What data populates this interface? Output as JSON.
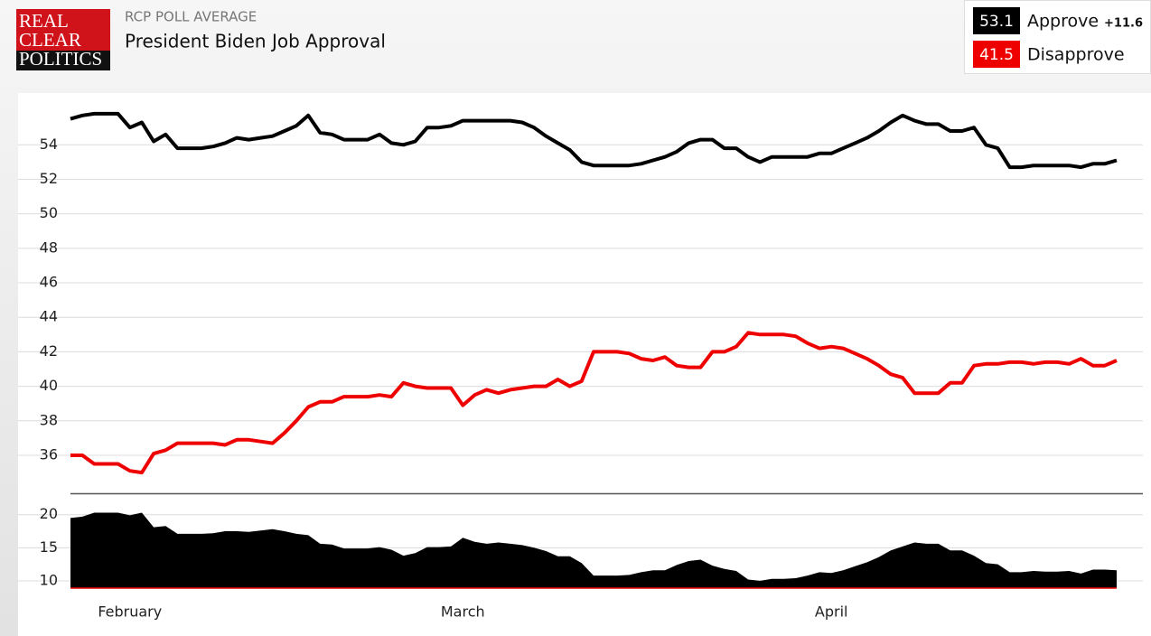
{
  "header": {
    "source": "RCP POLL AVERAGE",
    "logo": [
      "REAL",
      "CLEAR",
      "POLITICS"
    ],
    "spread": "+11.6"
  },
  "chart_data": [
    {
      "type": "line",
      "title": "President Biden Job Approval",
      "x": [
        0,
        1,
        2,
        3,
        4,
        5,
        6,
        7,
        8,
        9,
        10,
        11,
        12,
        13,
        14,
        15,
        16,
        17,
        18,
        19,
        20,
        21,
        22,
        23,
        24,
        25,
        26,
        27,
        28,
        29,
        30,
        31,
        32,
        33,
        34,
        35,
        36,
        37,
        38,
        39,
        40,
        41,
        42,
        43,
        44,
        45,
        46,
        47,
        48,
        49,
        50,
        51,
        52,
        53,
        54,
        55,
        56,
        57,
        58,
        59,
        60,
        61,
        62,
        63,
        64,
        65,
        66,
        67,
        68,
        69,
        70,
        71,
        72,
        73,
        74,
        75,
        76,
        77,
        78,
        79,
        80,
        81,
        82,
        83,
        84,
        85,
        86,
        87,
        88
      ],
      "xlim": [
        0,
        88
      ],
      "ylim": [
        33.8,
        57
      ],
      "yticks": [
        36,
        38,
        40,
        42,
        44,
        46,
        48,
        50,
        52,
        54
      ],
      "grid": true,
      "series": [
        {
          "name": "Approve",
          "color": "#000000",
          "values": [
            55.5,
            55.7,
            55.8,
            55.8,
            55.8,
            55.0,
            55.3,
            54.2,
            54.6,
            53.8,
            53.8,
            53.8,
            53.9,
            54.1,
            54.4,
            54.3,
            54.4,
            54.5,
            54.8,
            55.1,
            55.7,
            54.7,
            54.6,
            54.3,
            54.3,
            54.3,
            54.6,
            54.1,
            54.0,
            54.2,
            55.0,
            55.0,
            55.1,
            55.4,
            55.4,
            55.4,
            55.4,
            55.4,
            55.3,
            55.0,
            54.5,
            54.1,
            53.7,
            53.0,
            52.8,
            52.8,
            52.8,
            52.8,
            52.9,
            53.1,
            53.3,
            53.6,
            54.1,
            54.3,
            54.3,
            53.8,
            53.8,
            53.3,
            53.0,
            53.3,
            53.3,
            53.3,
            53.3,
            53.5,
            53.5,
            53.8,
            54.1,
            54.4,
            54.8,
            55.3,
            55.7,
            55.4,
            55.2,
            55.2,
            54.8,
            54.8,
            55.0,
            54.0,
            53.8,
            52.7,
            52.7,
            52.8,
            52.8,
            52.8,
            52.8,
            52.7,
            52.9,
            52.9,
            53.1
          ]
        },
        {
          "name": "Disapprove",
          "color": "#ee0000",
          "values": [
            36.0,
            36.0,
            35.5,
            35.5,
            35.5,
            35.1,
            35.0,
            36.1,
            36.3,
            36.7,
            36.7,
            36.7,
            36.7,
            36.6,
            36.9,
            36.9,
            36.8,
            36.7,
            37.3,
            38.0,
            38.8,
            39.1,
            39.1,
            39.4,
            39.4,
            39.4,
            39.5,
            39.4,
            40.2,
            40.0,
            39.9,
            39.9,
            39.9,
            38.9,
            39.5,
            39.8,
            39.6,
            39.8,
            39.9,
            40.0,
            40.0,
            40.4,
            40.0,
            40.3,
            42.0,
            42.0,
            42.0,
            41.9,
            41.6,
            41.5,
            41.7,
            41.2,
            41.1,
            41.1,
            42.0,
            42.0,
            42.3,
            43.1,
            43.0,
            43.0,
            43.0,
            42.9,
            42.5,
            42.2,
            42.3,
            42.2,
            41.9,
            41.6,
            41.2,
            40.7,
            40.5,
            39.6,
            39.6,
            39.6,
            40.2,
            40.2,
            41.2,
            41.3,
            41.3,
            41.4,
            41.4,
            41.3,
            41.4,
            41.4,
            41.3,
            41.6,
            41.2,
            41.2,
            41.5
          ]
        }
      ]
    },
    {
      "type": "area",
      "color": "#000000",
      "x": [
        0,
        1,
        2,
        3,
        4,
        5,
        6,
        7,
        8,
        9,
        10,
        11,
        12,
        13,
        14,
        15,
        16,
        17,
        18,
        19,
        20,
        21,
        22,
        23,
        24,
        25,
        26,
        27,
        28,
        29,
        30,
        31,
        32,
        33,
        34,
        35,
        36,
        37,
        38,
        39,
        40,
        41,
        42,
        43,
        44,
        45,
        46,
        47,
        48,
        49,
        50,
        51,
        52,
        53,
        54,
        55,
        56,
        57,
        58,
        59,
        60,
        61,
        62,
        63,
        64,
        65,
        66,
        67,
        68,
        69,
        70,
        71,
        72,
        73,
        74,
        75,
        76,
        77,
        78,
        79,
        80,
        81,
        82,
        83,
        84,
        85,
        86,
        87,
        88
      ],
      "values": [
        19.5,
        19.7,
        20.3,
        20.3,
        20.3,
        19.9,
        20.3,
        18.1,
        18.3,
        17.1,
        17.1,
        17.1,
        17.2,
        17.5,
        17.5,
        17.4,
        17.6,
        17.8,
        17.5,
        17.1,
        16.9,
        15.6,
        15.5,
        14.9,
        14.9,
        14.9,
        15.1,
        14.7,
        13.8,
        14.2,
        15.1,
        15.1,
        15.2,
        16.5,
        15.9,
        15.6,
        15.8,
        15.6,
        15.4,
        15.0,
        14.5,
        13.7,
        13.7,
        12.7,
        10.8,
        10.8,
        10.8,
        10.9,
        11.3,
        11.6,
        11.6,
        12.4,
        13.0,
        13.2,
        12.3,
        11.8,
        11.5,
        10.2,
        10.0,
        10.3,
        10.3,
        10.4,
        10.8,
        11.3,
        11.2,
        11.6,
        12.2,
        12.8,
        13.6,
        14.6,
        15.2,
        15.8,
        15.6,
        15.6,
        14.6,
        14.6,
        13.8,
        12.7,
        12.5,
        11.3,
        11.3,
        11.5,
        11.4,
        11.4,
        11.5,
        11.1,
        11.7,
        11.7,
        11.6
      ],
      "xlim": [
        0,
        88
      ],
      "xticks": [
        {
          "value": 5,
          "label": "February"
        },
        {
          "value": 33,
          "label": "March"
        },
        {
          "value": 64,
          "label": "April"
        }
      ],
      "ylim": [
        8.9,
        23.1
      ],
      "yticks": [
        10,
        15,
        20
      ],
      "grid": true
    }
  ]
}
